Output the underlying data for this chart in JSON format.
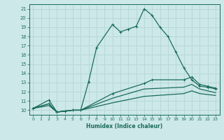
{
  "xlabel": "Humidex (Indice chaleur)",
  "xlim": [
    -0.5,
    23.5
  ],
  "ylim": [
    9.5,
    21.5
  ],
  "xticks": [
    0,
    1,
    2,
    3,
    4,
    5,
    6,
    7,
    8,
    9,
    10,
    11,
    12,
    13,
    14,
    15,
    16,
    17,
    18,
    19,
    20,
    21,
    22,
    23
  ],
  "yticks": [
    10,
    11,
    12,
    13,
    14,
    15,
    16,
    17,
    18,
    19,
    20,
    21
  ],
  "bg_color": "#cce8e8",
  "line_color": "#1a6b5a",
  "grid_color": "#b8d8d8",
  "line1_x": [
    0,
    2,
    3,
    4,
    5,
    6,
    7,
    8,
    10,
    11,
    12,
    13,
    14,
    15,
    16,
    17,
    18,
    19,
    20,
    21,
    22,
    23
  ],
  "line1_y": [
    10.2,
    11.1,
    9.8,
    9.9,
    10.0,
    10.0,
    13.1,
    16.8,
    19.3,
    18.5,
    18.8,
    19.1,
    21.0,
    20.3,
    19.0,
    18.0,
    16.3,
    14.6,
    13.3,
    12.6,
    12.5,
    12.3
  ],
  "line2_x": [
    0,
    2,
    3,
    4,
    5,
    6,
    10,
    14,
    15,
    19,
    20,
    21,
    22,
    23
  ],
  "line2_y": [
    10.2,
    10.7,
    9.8,
    9.9,
    10.0,
    10.0,
    11.8,
    12.9,
    13.3,
    13.3,
    13.6,
    12.8,
    12.6,
    12.4
  ],
  "line3_x": [
    0,
    2,
    3,
    4,
    5,
    6,
    10,
    14,
    19,
    20,
    21,
    22,
    23
  ],
  "line3_y": [
    10.2,
    10.7,
    9.8,
    9.9,
    10.0,
    10.0,
    11.3,
    12.3,
    12.5,
    12.8,
    12.3,
    12.1,
    11.9
  ],
  "line4_x": [
    0,
    2,
    3,
    4,
    5,
    6,
    10,
    14,
    19,
    20,
    21,
    22,
    23
  ],
  "line4_y": [
    10.2,
    10.5,
    9.8,
    9.9,
    10.0,
    10.0,
    10.8,
    11.5,
    11.8,
    12.1,
    11.8,
    11.7,
    11.6
  ]
}
